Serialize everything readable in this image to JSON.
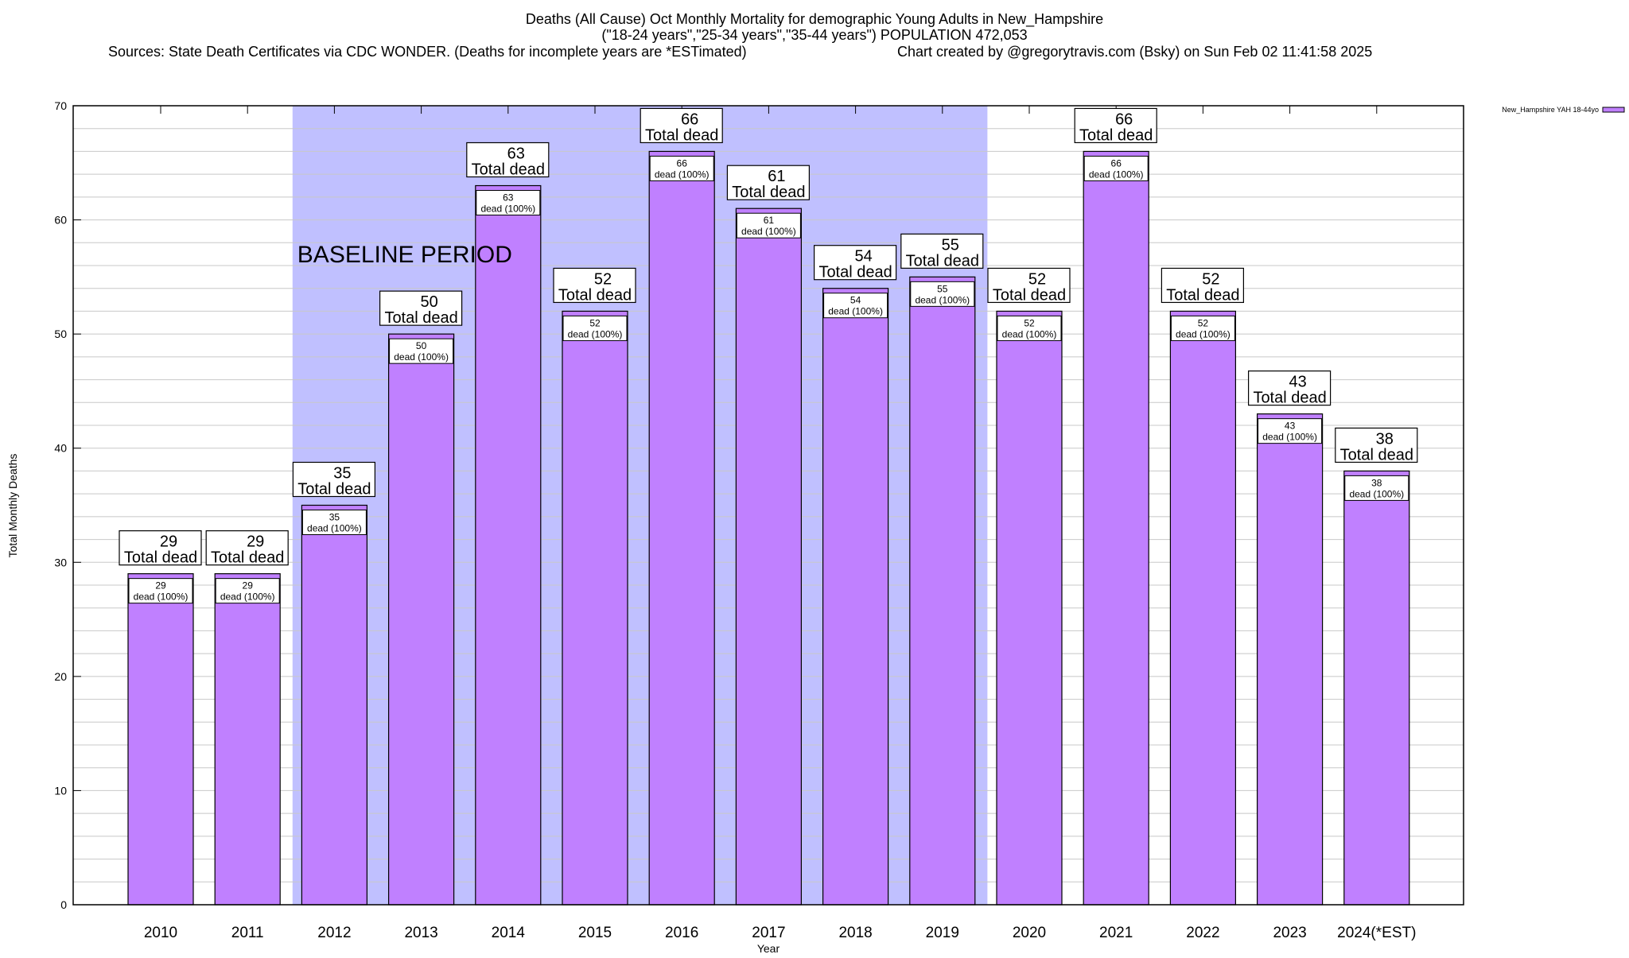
{
  "chart_data": {
    "type": "bar",
    "title": "Deaths (All Cause) Oct Monthly Mortality for demographic Young Adults in New_Hampshire",
    "subtitle": "(\"18-24 years\",\"25-34 years\",\"35-44 years\") POPULATION 472,053",
    "sources": "Sources: State Death Certificates via CDC WONDER. (Deaths for incomplete years are *ESTimated)",
    "credit": "Chart created by @gregorytravis.com (Bsky) on Sun Feb 02 11:41:58 2025",
    "xlabel": "Year",
    "ylabel": "Total Monthly Deaths",
    "ylim": [
      0,
      70
    ],
    "yticks": [
      0,
      10,
      20,
      30,
      40,
      50,
      60,
      70
    ],
    "grid": true,
    "legend": {
      "position": "top-right",
      "entries": [
        "New_Hampshire YAH 18-44yo"
      ]
    },
    "annotation": {
      "text": "BASELINE PERIOD",
      "from": "2012",
      "to": "2019"
    },
    "categories": [
      "2010",
      "2011",
      "2012",
      "2013",
      "2014",
      "2015",
      "2016",
      "2017",
      "2018",
      "2019",
      "2020",
      "2021",
      "2022",
      "2023",
      "2024(*EST)"
    ],
    "series": [
      {
        "name": "New_Hampshire YAH 18-44yo",
        "values": [
          29,
          29,
          35,
          50,
          63,
          52,
          66,
          61,
          54,
          55,
          52,
          66,
          52,
          43,
          38
        ]
      }
    ],
    "total_label": "Total dead",
    "inner_label": "dead (100%)",
    "colors": {
      "bar": "#c080ff",
      "baseline": "#c0c0ff",
      "grid": "#c8c8c8"
    }
  }
}
